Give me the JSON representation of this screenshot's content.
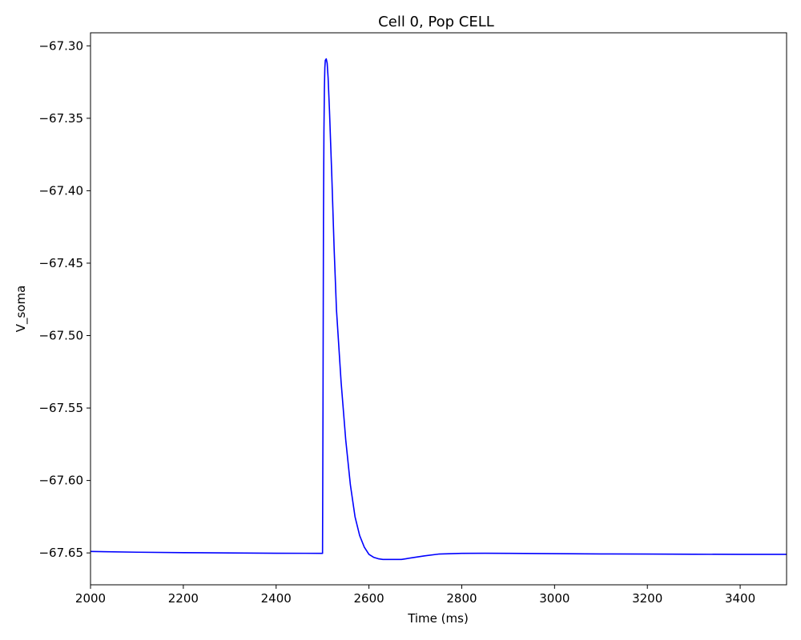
{
  "chart_data": {
    "type": "line",
    "title": "Cell 0, Pop CELL",
    "xlabel": "Time (ms)",
    "ylabel": "V_soma",
    "xlim": [
      2000,
      3500
    ],
    "ylim": [
      -67.672,
      -67.291
    ],
    "xticks": [
      2000,
      2200,
      2400,
      2600,
      2800,
      3000,
      3200,
      3400
    ],
    "yticks": [
      -67.65,
      -67.6,
      -67.55,
      -67.5,
      -67.45,
      -67.4,
      -67.35,
      -67.3
    ],
    "xtick_labels": [
      "2000",
      "2200",
      "2400",
      "2600",
      "2800",
      "3000",
      "3200",
      "3400"
    ],
    "ytick_labels": [
      "−67.65",
      "−67.60",
      "−67.55",
      "−67.50",
      "−67.45",
      "−67.40",
      "−67.35",
      "−67.30"
    ],
    "grid": false,
    "series": [
      {
        "color": "#0000ff",
        "x": [
          2000,
          2100,
          2200,
          2300,
          2400,
          2500,
          2501,
          2502,
          2503,
          2504,
          2505,
          2506,
          2508,
          2510,
          2512,
          2515,
          2520,
          2525,
          2530,
          2540,
          2550,
          2560,
          2570,
          2580,
          2590,
          2600,
          2610,
          2620,
          2630,
          2640,
          2650,
          2660,
          2670,
          2680,
          2700,
          2720,
          2750,
          2800,
          2850,
          2900,
          3000,
          3100,
          3200,
          3300,
          3400,
          3500
        ],
        "y": [
          -67.649,
          -67.6495,
          -67.6498,
          -67.65,
          -67.6502,
          -67.6503,
          -67.55,
          -67.42,
          -67.36,
          -67.33,
          -67.315,
          -67.31,
          -67.309,
          -67.312,
          -67.322,
          -67.345,
          -67.39,
          -67.44,
          -67.482,
          -67.532,
          -67.572,
          -67.603,
          -67.625,
          -67.638,
          -67.646,
          -67.651,
          -67.653,
          -67.654,
          -67.6545,
          -67.6545,
          -67.6545,
          -67.6545,
          -67.6545,
          -67.654,
          -67.653,
          -67.652,
          -67.6508,
          -67.6503,
          -67.6502,
          -67.6503,
          -67.6505,
          -67.6507,
          -67.6508,
          -67.6509,
          -67.651,
          -67.651
        ]
      }
    ]
  }
}
